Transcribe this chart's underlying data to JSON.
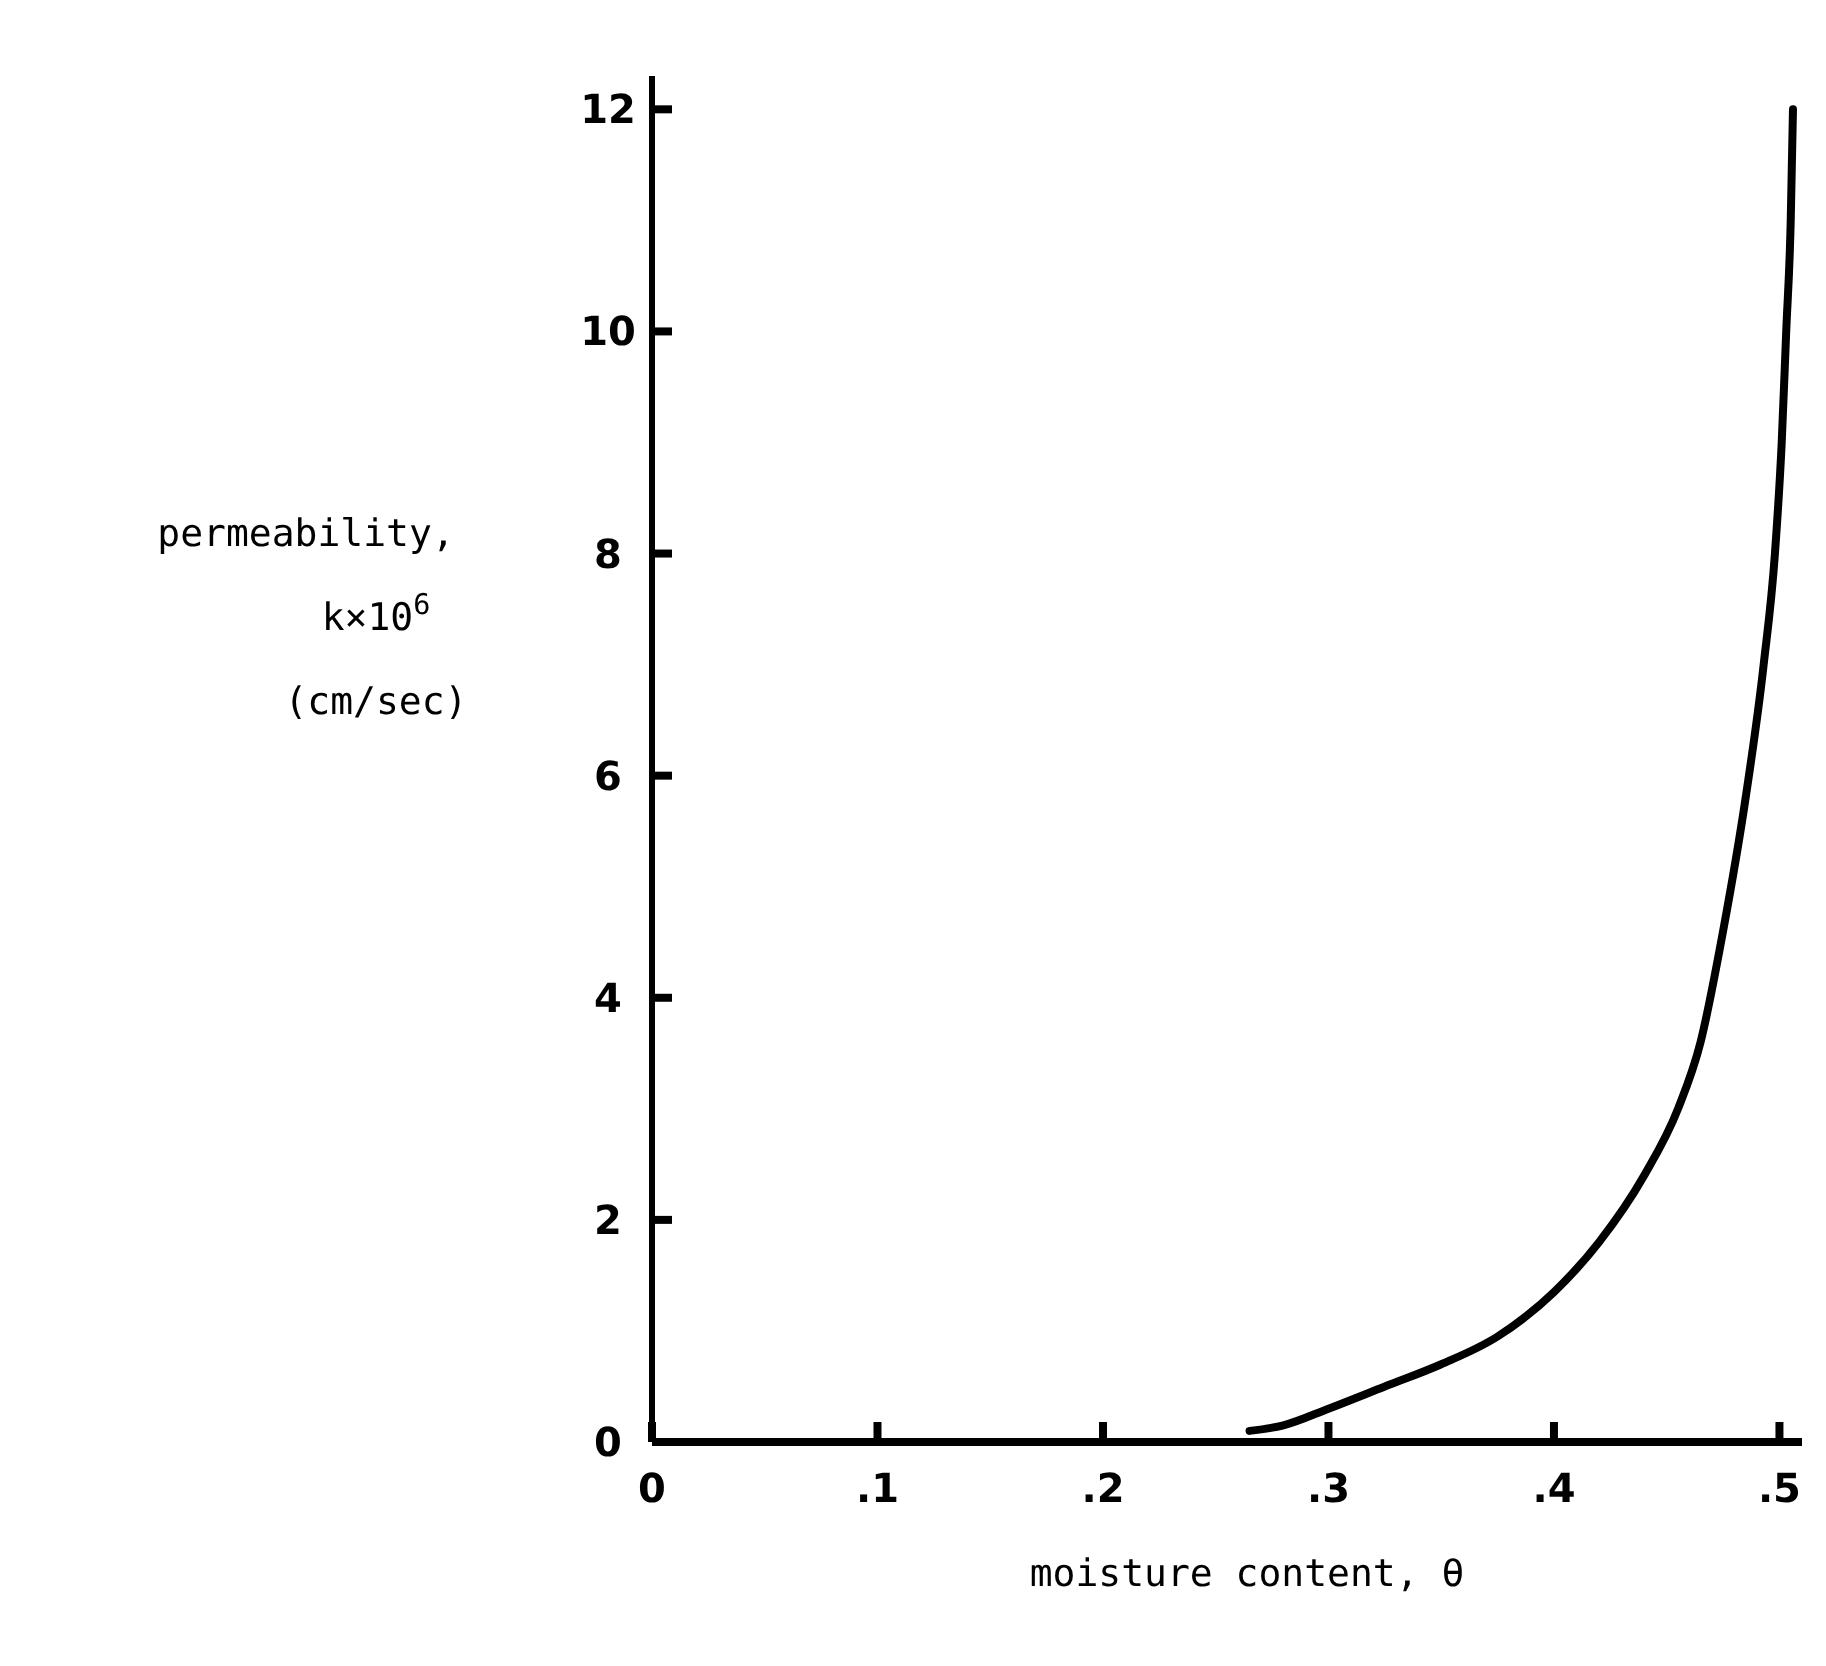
{
  "chart_data": {
    "type": "line",
    "xlabel": "moisture content, θ",
    "ylabel": "permeability,\nk×10$^{6}$\n(cm/sec)",
    "x": [
      0.265,
      0.28,
      0.3,
      0.325,
      0.35,
      0.375,
      0.4,
      0.42,
      0.44,
      0.455,
      0.465,
      0.475,
      0.485,
      0.493,
      0.498,
      0.501,
      0.503,
      0.505,
      0.506
    ],
    "series": [
      {
        "color": "#000000",
        "values": [
          0.1,
          0.15,
          0.3,
          0.5,
          0.7,
          0.95,
          1.35,
          1.8,
          2.4,
          3.0,
          3.6,
          4.6,
          5.8,
          7.0,
          8.0,
          9.0,
          10.0,
          11.0,
          12.0
        ]
      }
    ],
    "xlim": [
      0,
      0.51
    ],
    "ylim": [
      0,
      12.3
    ],
    "xticks": [
      {
        "value": 0,
        "label": "0"
      },
      {
        "value": 0.1,
        "label": ".1"
      },
      {
        "value": 0.2,
        "label": ".2"
      },
      {
        "value": 0.3,
        "label": ".3"
      },
      {
        "value": 0.4,
        "label": ".4"
      },
      {
        "value": 0.5,
        "label": ".5"
      }
    ],
    "yticks": [
      0,
      2,
      4,
      6,
      8,
      10,
      12
    ],
    "marker": "none",
    "line_style": "solid"
  }
}
